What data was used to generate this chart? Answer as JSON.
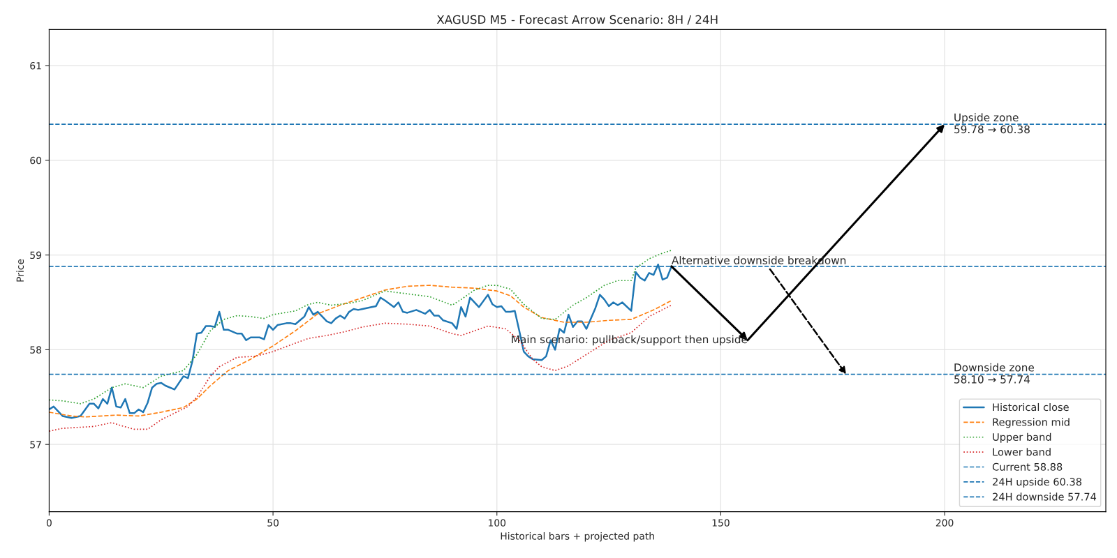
{
  "chart_data": {
    "type": "line",
    "title": "XAGUSD M5 - Forecast Arrow Scenario: 8H / 24H",
    "xlabel": "Historical bars + projected path",
    "ylabel": "Price",
    "xlim": [
      0,
      236
    ],
    "ylim": [
      56.29,
      61.38
    ],
    "xticks": [
      0,
      50,
      100,
      150,
      200
    ],
    "yticks": [
      57,
      58,
      59,
      60,
      61
    ],
    "grid": true,
    "legend": "bottom right",
    "series": [
      {
        "name": "Historical close",
        "color": "#1f77b4",
        "line_style": "solid",
        "x": [
          0,
          1,
          3,
          5,
          7,
          9,
          10,
          11,
          12,
          13,
          14,
          15,
          16,
          17,
          18,
          19,
          20,
          21,
          22,
          23,
          24,
          25,
          26,
          28,
          29,
          30,
          31,
          32,
          33,
          34,
          35,
          36,
          37,
          38,
          39,
          40,
          41,
          42,
          43,
          44,
          45,
          47,
          48,
          49,
          50,
          51,
          53,
          54,
          55,
          56,
          57,
          58,
          59,
          60,
          62,
          63,
          64,
          65,
          66,
          67,
          68,
          69,
          70,
          72,
          73,
          74,
          75,
          77,
          78,
          79,
          80,
          82,
          83,
          84,
          85,
          86,
          87,
          88,
          90,
          91,
          92,
          93,
          94,
          96,
          98,
          99,
          100,
          101,
          102,
          103,
          104,
          105,
          106,
          107,
          108,
          110,
          111,
          112,
          113,
          114,
          115,
          116,
          117,
          118,
          119,
          120,
          122,
          123,
          124,
          125,
          126,
          127,
          128,
          130,
          131,
          132,
          133,
          134,
          135,
          136,
          137,
          138,
          139
        ],
        "values": [
          57.37,
          57.4,
          57.3,
          57.28,
          57.3,
          57.43,
          57.43,
          57.38,
          57.48,
          57.43,
          57.6,
          57.4,
          57.39,
          57.48,
          57.33,
          57.33,
          57.37,
          57.34,
          57.44,
          57.6,
          57.64,
          57.65,
          57.62,
          57.58,
          57.65,
          57.72,
          57.7,
          57.88,
          58.17,
          58.18,
          58.25,
          58.25,
          58.24,
          58.4,
          58.21,
          58.21,
          58.19,
          58.17,
          58.17,
          58.1,
          58.13,
          58.13,
          58.11,
          58.26,
          58.21,
          58.26,
          58.28,
          58.28,
          58.27,
          58.31,
          58.35,
          58.45,
          58.37,
          58.4,
          58.3,
          58.28,
          58.33,
          58.36,
          58.33,
          58.4,
          58.43,
          58.42,
          58.43,
          58.45,
          58.46,
          58.55,
          58.52,
          58.45,
          58.5,
          58.4,
          58.39,
          58.42,
          58.4,
          58.38,
          58.42,
          58.36,
          58.36,
          58.31,
          58.28,
          58.22,
          58.45,
          58.35,
          58.55,
          58.45,
          58.58,
          58.48,
          58.45,
          58.46,
          58.4,
          58.4,
          58.41,
          58.2,
          57.98,
          57.93,
          57.9,
          57.89,
          57.93,
          58.1,
          58.0,
          58.22,
          58.18,
          58.37,
          58.24,
          58.3,
          58.3,
          58.22,
          58.44,
          58.58,
          58.53,
          58.46,
          58.5,
          58.47,
          58.5,
          58.41,
          58.82,
          58.76,
          58.73,
          58.81,
          58.79,
          58.9,
          58.74,
          58.76,
          58.88
        ]
      },
      {
        "name": "Regression mid",
        "color": "#ff7f0e",
        "line_style": "dashed",
        "x": [
          0,
          5,
          8,
          15,
          20,
          25,
          30,
          33,
          36,
          40,
          45,
          50,
          55,
          60,
          65,
          70,
          75,
          80,
          85,
          90,
          95,
          100,
          103,
          106,
          110,
          115,
          120,
          125,
          130,
          135,
          139
        ],
        "values": [
          57.34,
          57.3,
          57.29,
          57.31,
          57.3,
          57.34,
          57.39,
          57.48,
          57.62,
          57.78,
          57.9,
          58.04,
          58.2,
          58.38,
          58.47,
          58.55,
          58.63,
          58.67,
          58.68,
          58.66,
          58.65,
          58.62,
          58.57,
          58.45,
          58.34,
          58.29,
          58.29,
          58.31,
          58.32,
          58.42,
          58.52
        ]
      },
      {
        "name": "Upper band",
        "color": "#2ca02c",
        "line_style": "dotted",
        "x": [
          0,
          3,
          7,
          10,
          14,
          17,
          21,
          25,
          30,
          33,
          36,
          39,
          42,
          45,
          48,
          50,
          55,
          58,
          60,
          63,
          67,
          70,
          75,
          80,
          85,
          90,
          92,
          95,
          98,
          100,
          103,
          106,
          110,
          113,
          117,
          120,
          124,
          127,
          130,
          131,
          134,
          137,
          139
        ],
        "values": [
          57.47,
          57.46,
          57.43,
          57.48,
          57.6,
          57.64,
          57.6,
          57.72,
          57.78,
          57.95,
          58.2,
          58.32,
          58.36,
          58.35,
          58.33,
          58.37,
          58.41,
          58.48,
          58.5,
          58.47,
          58.49,
          58.52,
          58.62,
          58.59,
          58.56,
          58.47,
          58.53,
          58.63,
          58.68,
          58.68,
          58.64,
          58.48,
          58.33,
          58.32,
          58.47,
          58.55,
          58.68,
          58.73,
          58.73,
          58.86,
          58.96,
          59.02,
          59.05
        ]
      },
      {
        "name": "Lower band",
        "color": "#d62728",
        "line_style": "dotted",
        "x": [
          0,
          3,
          10,
          14,
          16,
          19,
          22,
          25,
          28,
          31,
          33,
          36,
          38,
          42,
          46,
          50,
          55,
          58,
          62,
          66,
          70,
          75,
          80,
          85,
          90,
          92,
          95,
          98,
          102,
          105,
          108,
          110,
          113,
          116,
          120,
          125,
          130,
          134,
          139
        ],
        "values": [
          57.14,
          57.17,
          57.19,
          57.23,
          57.2,
          57.16,
          57.16,
          57.26,
          57.33,
          57.4,
          57.5,
          57.72,
          57.82,
          57.92,
          57.93,
          57.98,
          58.07,
          58.12,
          58.15,
          58.19,
          58.24,
          58.28,
          58.27,
          58.25,
          58.17,
          58.15,
          58.2,
          58.25,
          58.22,
          58.1,
          57.9,
          57.82,
          57.78,
          57.83,
          57.95,
          58.1,
          58.18,
          58.35,
          58.47
        ]
      },
      {
        "type": "line",
        "color": "#000000",
        "line_style": "solid",
        "x": [
          139,
          156,
          200
        ],
        "values": [
          58.88,
          58.1,
          60.38
        ]
      },
      {
        "type": "line",
        "color": "#000000",
        "line_style": "dashed",
        "x": [
          161,
          178
        ],
        "values": [
          58.85,
          57.74
        ]
      }
    ],
    "ref_lines": [
      {
        "axis": "y",
        "value": 58.88,
        "label": "Current 58.88",
        "color": "#1f77b4",
        "line_style": "dashed"
      },
      {
        "axis": "y",
        "value": 60.38,
        "label": "24H upside 60.38",
        "color": "#1f77b4",
        "line_style": "dashed"
      },
      {
        "axis": "y",
        "value": 57.74,
        "label": "24H downside 57.74",
        "color": "#1f77b4",
        "line_style": "dashed"
      }
    ],
    "annotations": [
      {
        "text": "Main scenario: pullback/support then upside",
        "x": 156,
        "y": 58.1
      },
      {
        "text": "Alternative downside breakdown",
        "x": 139,
        "y": 58.88
      },
      {
        "text": "Upside zone\n59.78 → 60.38",
        "x": 202,
        "y": 60.38
      },
      {
        "text": "Downside zone\n58.10 → 57.74",
        "x": 202,
        "y": 57.74
      }
    ]
  }
}
